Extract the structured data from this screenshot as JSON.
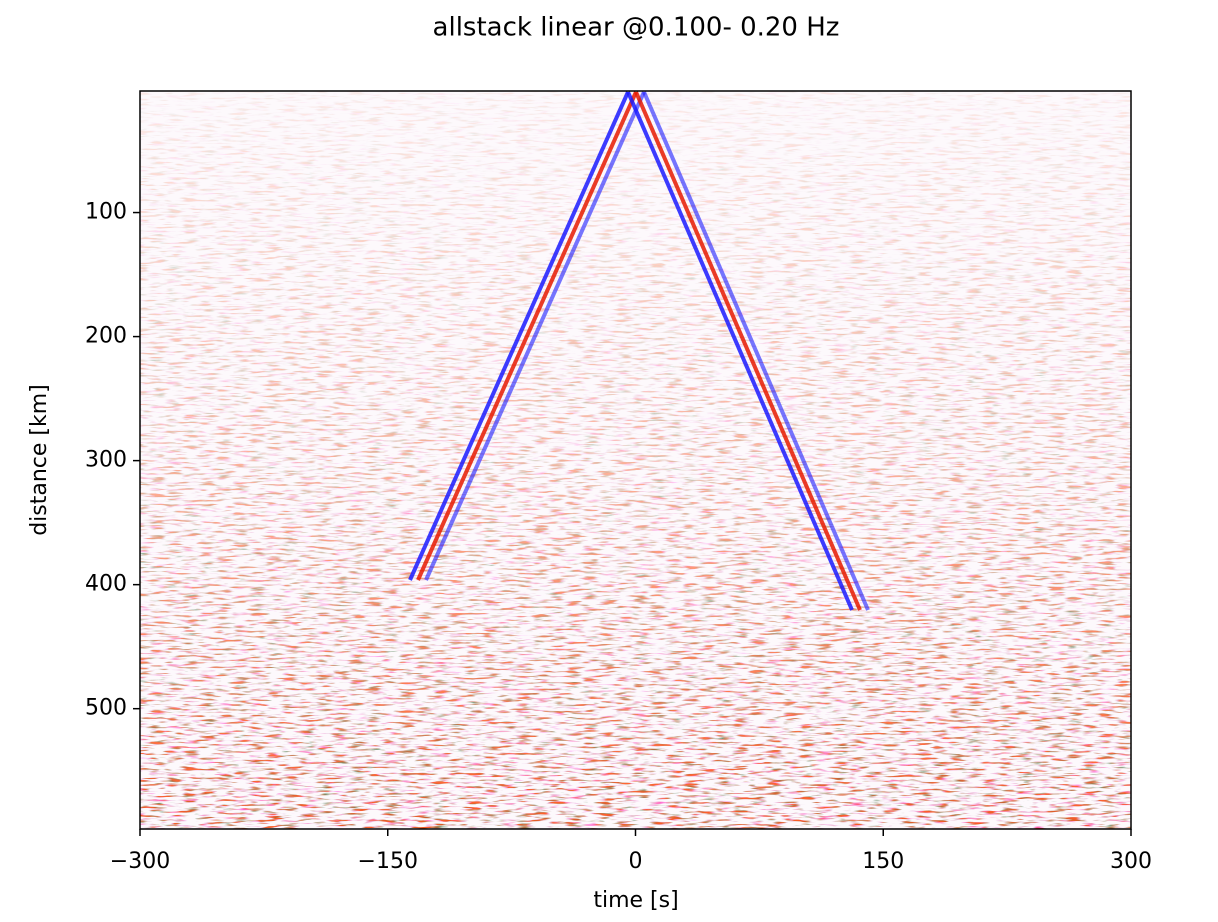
{
  "chart_data": {
    "type": "heatmap",
    "title": "allstack linear @0.100- 0.20 Hz",
    "xlabel": "time [s]",
    "ylabel": "distance [km]",
    "colormap": "seismic",
    "xlim": [
      -300,
      300
    ],
    "xticks": [
      {
        "value": -300,
        "label": "−300"
      },
      {
        "value": -150,
        "label": "−150"
      },
      0,
      150,
      300
    ],
    "ylim": [
      597,
      2
    ],
    "yticks": [
      100,
      200,
      300,
      400,
      500
    ]
  }
}
